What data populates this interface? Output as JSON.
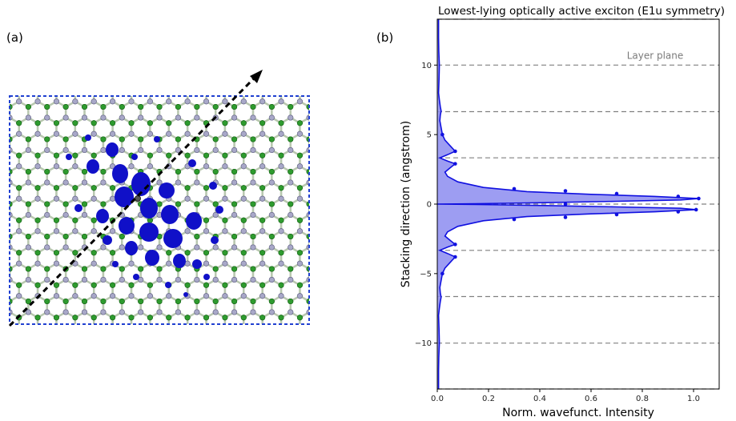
{
  "panels": {
    "a_label": "(a)",
    "b_label": "(b)"
  },
  "colors": {
    "density": "#1010c8",
    "fill": "#8c8cf0",
    "boron": "#2e9b2e",
    "nitrogen": "#a8a8c8",
    "bond": "#b9c8b0",
    "cell_border": "#2040d0",
    "gridline": "#808080"
  },
  "structure_image": {
    "description_icon": "hbn-lattice-exciton-density",
    "arrow": "stacking-cut-arrow"
  },
  "chart_data": {
    "type": "area",
    "title": "Lowest-lying optically active exciton (E1u symmetry)",
    "xlabel": "Norm. wavefunct. Intensity",
    "ylabel": "Stacking direction (angstrom)",
    "xlim": [
      0.0,
      1.1
    ],
    "ylim": [
      -13.3,
      13.3
    ],
    "xticks": [
      "0.0",
      "0.2",
      "0.4",
      "0.6",
      "0.8",
      "1.0"
    ],
    "yticks": [
      "−10",
      "−5",
      "0",
      "5",
      "10"
    ],
    "ytick_values": [
      -10,
      -5,
      0,
      5,
      10
    ],
    "xtick_values": [
      0.0,
      0.2,
      0.4,
      0.6,
      0.8,
      1.0
    ],
    "layer_planes": [
      -13.3,
      -10.0,
      -6.65,
      -3.33,
      0.0,
      3.33,
      6.65,
      10.0,
      13.3
    ],
    "annotation": "Layer plane",
    "annotation_position": {
      "x": 0.85,
      "y": 10.45
    },
    "series": [
      {
        "points": [
          [
            0.005,
            -13.3
          ],
          [
            0.005,
            -12.0
          ],
          [
            0.006,
            -11.0
          ],
          [
            0.008,
            -10.0
          ],
          [
            0.007,
            -9.0
          ],
          [
            0.005,
            -8.0
          ],
          [
            0.008,
            -7.5
          ],
          [
            0.012,
            -7.0
          ],
          [
            0.015,
            -6.7
          ],
          [
            0.012,
            -6.4
          ],
          [
            0.01,
            -6.0
          ],
          [
            0.015,
            -5.5
          ],
          [
            0.02,
            -5.0
          ],
          [
            0.03,
            -4.6
          ],
          [
            0.05,
            -4.2
          ],
          [
            0.07,
            -3.8
          ],
          [
            0.04,
            -3.55
          ],
          [
            0.01,
            -3.33
          ],
          [
            0.04,
            -3.1
          ],
          [
            0.07,
            -2.9
          ],
          [
            0.05,
            -2.6
          ],
          [
            0.03,
            -2.3
          ],
          [
            0.04,
            -2.0
          ],
          [
            0.08,
            -1.6
          ],
          [
            0.18,
            -1.2
          ],
          [
            0.35,
            -0.9
          ],
          [
            0.6,
            -0.7
          ],
          [
            0.85,
            -0.55
          ],
          [
            1.01,
            -0.4
          ],
          [
            0.95,
            -0.3
          ],
          [
            0.7,
            -0.2
          ],
          [
            0.4,
            -0.1
          ],
          [
            0.15,
            -0.03
          ],
          [
            0.0,
            0.0
          ],
          [
            0.15,
            0.03
          ],
          [
            0.4,
            0.1
          ],
          [
            0.7,
            0.2
          ],
          [
            0.95,
            0.3
          ],
          [
            1.02,
            0.4
          ],
          [
            0.85,
            0.55
          ],
          [
            0.6,
            0.7
          ],
          [
            0.35,
            0.9
          ],
          [
            0.18,
            1.2
          ],
          [
            0.08,
            1.6
          ],
          [
            0.04,
            2.0
          ],
          [
            0.03,
            2.3
          ],
          [
            0.05,
            2.6
          ],
          [
            0.07,
            2.9
          ],
          [
            0.04,
            3.1
          ],
          [
            0.01,
            3.33
          ],
          [
            0.04,
            3.55
          ],
          [
            0.07,
            3.8
          ],
          [
            0.05,
            4.2
          ],
          [
            0.03,
            4.6
          ],
          [
            0.02,
            5.0
          ],
          [
            0.015,
            5.5
          ],
          [
            0.01,
            6.0
          ],
          [
            0.012,
            6.4
          ],
          [
            0.015,
            6.7
          ],
          [
            0.012,
            7.0
          ],
          [
            0.008,
            7.5
          ],
          [
            0.005,
            8.0
          ],
          [
            0.007,
            9.0
          ],
          [
            0.008,
            10.0
          ],
          [
            0.006,
            11.0
          ],
          [
            0.005,
            12.0
          ],
          [
            0.005,
            13.3
          ]
        ],
        "markers": [
          [
            0.02,
            -5.0
          ],
          [
            0.07,
            -3.8
          ],
          [
            0.07,
            -2.9
          ],
          [
            0.3,
            -1.1
          ],
          [
            0.5,
            -0.95
          ],
          [
            0.7,
            -0.75
          ],
          [
            0.94,
            -0.55
          ],
          [
            1.01,
            -0.4
          ],
          [
            0.5,
            0.0
          ],
          [
            1.02,
            0.4
          ],
          [
            0.94,
            0.55
          ],
          [
            0.7,
            0.75
          ],
          [
            0.5,
            0.95
          ],
          [
            0.3,
            1.1
          ],
          [
            0.07,
            2.9
          ],
          [
            0.07,
            3.8
          ],
          [
            0.02,
            5.0
          ]
        ]
      }
    ],
    "grid": false,
    "legend": "none"
  }
}
